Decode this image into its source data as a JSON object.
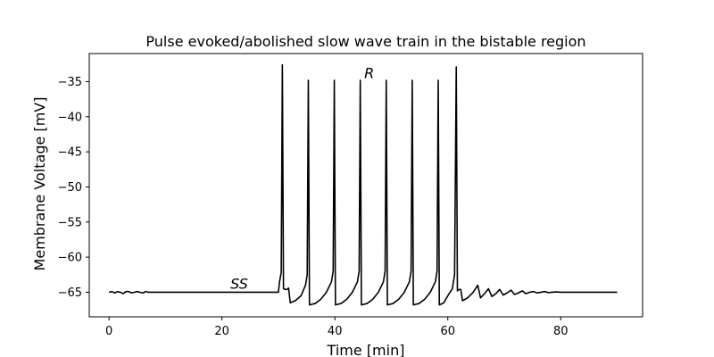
{
  "chart_data": {
    "type": "line",
    "title": "Pulse evoked/abolished slow wave train in the bistable region",
    "xlabel": "Time [min]",
    "ylabel": "Membrane Voltage [mV]",
    "xlim": [
      -3.5,
      94.5
    ],
    "ylim": [
      -68.5,
      -31.0
    ],
    "xticks": [
      0,
      20,
      40,
      60,
      80
    ],
    "yticks": [
      -65,
      -60,
      -55,
      -50,
      -45,
      -40,
      -35
    ],
    "grid": false,
    "line_color": "#000000",
    "annotations": [
      {
        "text": "SS",
        "x": 21.5,
        "y": -64.5
      },
      {
        "text": "R",
        "x": 45.2,
        "y": -34.5
      }
    ],
    "baseline_mV": -65.0,
    "spikes": [
      {
        "t": 30.7,
        "peak": -32.6
      },
      {
        "t": 35.3,
        "peak": -34.8
      },
      {
        "t": 39.9,
        "peak": -34.8
      },
      {
        "t": 44.5,
        "peak": -34.8
      },
      {
        "t": 49.1,
        "peak": -34.8
      },
      {
        "t": 53.7,
        "peak": -34.8
      },
      {
        "t": 58.3,
        "peak": -34.8
      },
      {
        "t": 61.5,
        "peak": -32.9
      }
    ],
    "series": [
      {
        "values_xy": [
          [
            0.0,
            -65.0
          ],
          [
            0.5,
            -64.9
          ],
          [
            1.0,
            -65.1
          ],
          [
            1.5,
            -64.9
          ],
          [
            2.0,
            -65.0
          ],
          [
            2.5,
            -65.2
          ],
          [
            3.0,
            -64.9
          ],
          [
            3.5,
            -64.9
          ],
          [
            4.0,
            -65.1
          ],
          [
            4.5,
            -65.0
          ],
          [
            5.0,
            -64.9
          ],
          [
            5.5,
            -65.0
          ],
          [
            6.0,
            -65.1
          ],
          [
            6.5,
            -64.9
          ],
          [
            7.0,
            -65.0
          ],
          [
            8.0,
            -65.0
          ],
          [
            9.0,
            -65.0
          ],
          [
            10.0,
            -65.0
          ],
          [
            12.0,
            -65.0
          ],
          [
            15.0,
            -65.0
          ],
          [
            20.0,
            -65.0
          ],
          [
            25.0,
            -65.0
          ],
          [
            30.0,
            -65.0
          ],
          [
            30.2,
            -63.5
          ],
          [
            30.5,
            -62.2
          ],
          [
            30.7,
            -32.6
          ],
          [
            30.9,
            -64.5
          ],
          [
            31.2,
            -64.6
          ],
          [
            31.5,
            -64.6
          ],
          [
            31.8,
            -64.4
          ],
          [
            32.1,
            -66.5
          ],
          [
            33.0,
            -66.2
          ],
          [
            34.0,
            -65.5
          ],
          [
            34.8,
            -64.0
          ],
          [
            35.1,
            -62.5
          ],
          [
            35.3,
            -34.8
          ],
          [
            35.5,
            -66.8
          ],
          [
            36.5,
            -66.6
          ],
          [
            37.5,
            -66.0
          ],
          [
            38.5,
            -65.0
          ],
          [
            39.4,
            -63.5
          ],
          [
            39.7,
            -62.0
          ],
          [
            39.9,
            -34.8
          ],
          [
            40.1,
            -66.8
          ],
          [
            41.1,
            -66.6
          ],
          [
            42.1,
            -66.0
          ],
          [
            43.1,
            -65.0
          ],
          [
            44.0,
            -63.5
          ],
          [
            44.3,
            -62.0
          ],
          [
            44.5,
            -34.8
          ],
          [
            44.7,
            -66.8
          ],
          [
            45.7,
            -66.6
          ],
          [
            46.7,
            -66.0
          ],
          [
            47.7,
            -65.0
          ],
          [
            48.6,
            -63.5
          ],
          [
            48.9,
            -62.0
          ],
          [
            49.1,
            -34.8
          ],
          [
            49.3,
            -66.8
          ],
          [
            50.3,
            -66.6
          ],
          [
            51.3,
            -66.0
          ],
          [
            52.3,
            -65.0
          ],
          [
            53.2,
            -63.5
          ],
          [
            53.5,
            -62.0
          ],
          [
            53.7,
            -34.8
          ],
          [
            53.9,
            -66.8
          ],
          [
            54.9,
            -66.6
          ],
          [
            55.9,
            -66.0
          ],
          [
            56.9,
            -65.0
          ],
          [
            57.8,
            -63.5
          ],
          [
            58.1,
            -62.0
          ],
          [
            58.3,
            -34.8
          ],
          [
            58.5,
            -66.8
          ],
          [
            59.3,
            -66.5
          ],
          [
            60.0,
            -65.5
          ],
          [
            60.8,
            -64.5
          ],
          [
            61.2,
            -62.5
          ],
          [
            61.5,
            -32.9
          ],
          [
            61.7,
            -64.8
          ],
          [
            62.0,
            -64.6
          ],
          [
            62.3,
            -64.6
          ],
          [
            62.6,
            -66.2
          ],
          [
            63.5,
            -65.8
          ],
          [
            64.5,
            -65.0
          ],
          [
            65.3,
            -64.0
          ],
          [
            65.8,
            -65.8
          ],
          [
            66.5,
            -65.2
          ],
          [
            67.2,
            -64.5
          ],
          [
            67.8,
            -65.6
          ],
          [
            68.5,
            -65.2
          ],
          [
            69.2,
            -64.6
          ],
          [
            69.8,
            -65.4
          ],
          [
            70.5,
            -65.1
          ],
          [
            71.2,
            -64.7
          ],
          [
            71.8,
            -65.3
          ],
          [
            72.5,
            -65.1
          ],
          [
            73.2,
            -64.8
          ],
          [
            73.8,
            -65.2
          ],
          [
            74.5,
            -65.0
          ],
          [
            75.2,
            -64.9
          ],
          [
            75.8,
            -65.1
          ],
          [
            76.5,
            -65.0
          ],
          [
            77.2,
            -64.9
          ],
          [
            77.8,
            -65.05
          ],
          [
            78.5,
            -65.0
          ],
          [
            79.2,
            -64.95
          ],
          [
            80.0,
            -65.0
          ],
          [
            82.0,
            -65.0
          ],
          [
            85.0,
            -65.0
          ],
          [
            90.0,
            -65.0
          ]
        ]
      }
    ]
  }
}
